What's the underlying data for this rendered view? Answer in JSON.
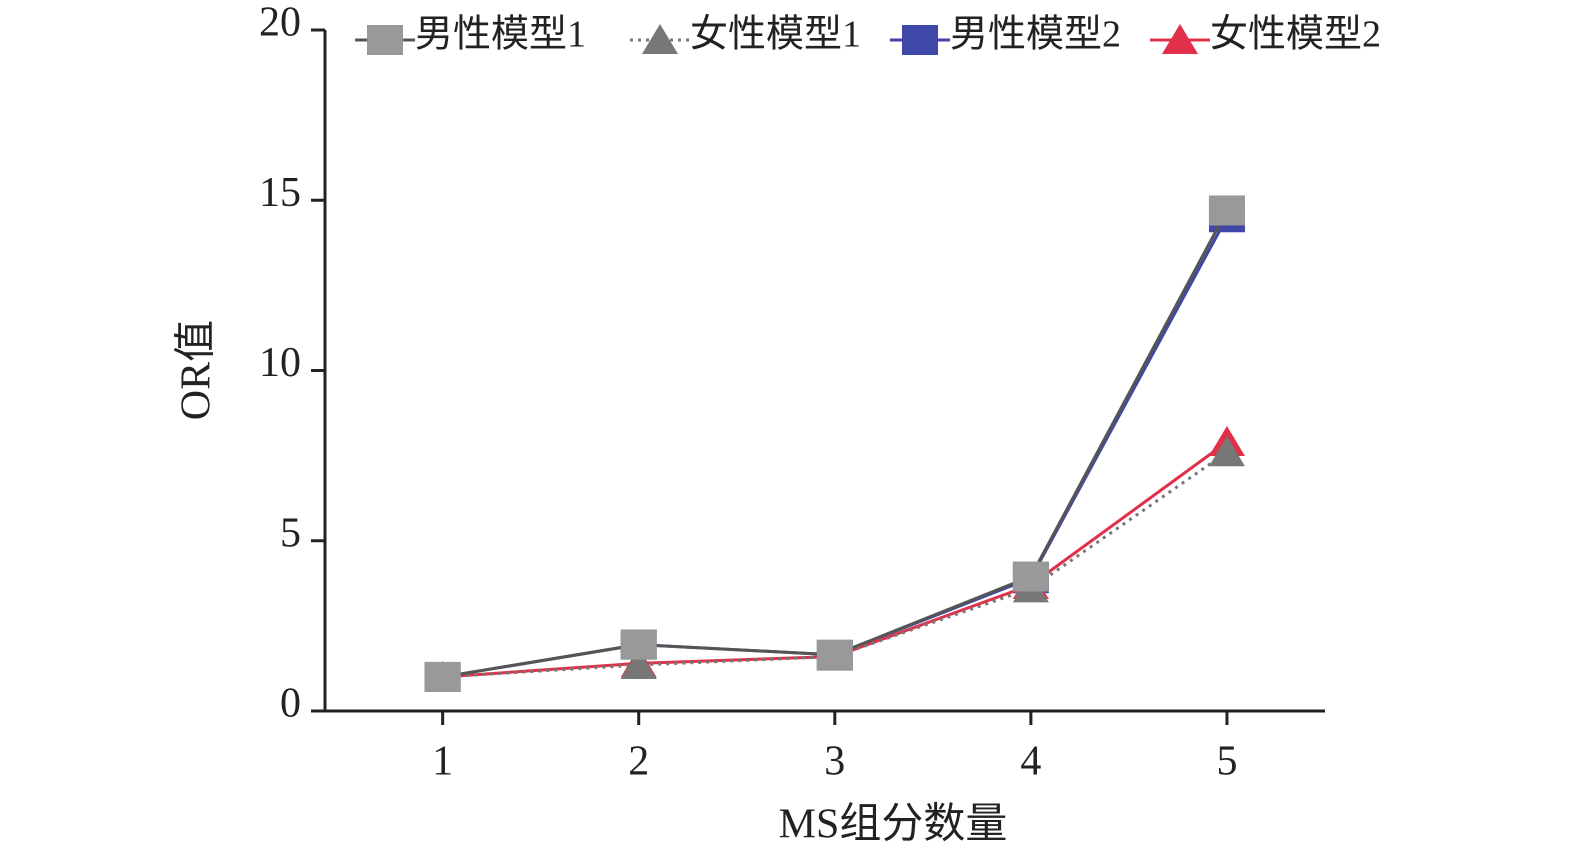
{
  "chart_data": {
    "type": "line",
    "x_label": "MS组分数量",
    "y_label": "OR值",
    "x": [
      1,
      2,
      3,
      4,
      5
    ],
    "xlim": [
      0.4,
      5.5
    ],
    "xticks": [
      1,
      2,
      3,
      4,
      5
    ],
    "ylim": [
      0,
      20
    ],
    "yticks": [
      0,
      5,
      10,
      15,
      20
    ],
    "series": [
      {
        "name": "男性模型1",
        "color": "#999999",
        "line_color": "#555555",
        "marker": "square",
        "dash": "solid",
        "values": [
          1,
          1.95,
          1.65,
          3.95,
          14.7
        ]
      },
      {
        "name": "女性模型1",
        "color": "#777777",
        "line_color": "#777777",
        "marker": "triangle",
        "dash": "dotted",
        "values": [
          1,
          1.35,
          1.6,
          3.6,
          7.6
        ]
      },
      {
        "name": "男性模型2",
        "color": "#3f48a8",
        "line_color": "#3f48a8",
        "marker": "square",
        "dash": "solid",
        "values": [
          1,
          1.95,
          1.65,
          3.9,
          14.5
        ]
      },
      {
        "name": "女性模型2",
        "color": "#e0304a",
        "line_color": "#e0304a",
        "marker": "triangle",
        "dash": "solid",
        "values": [
          1,
          1.4,
          1.6,
          3.7,
          7.9
        ]
      }
    ]
  }
}
